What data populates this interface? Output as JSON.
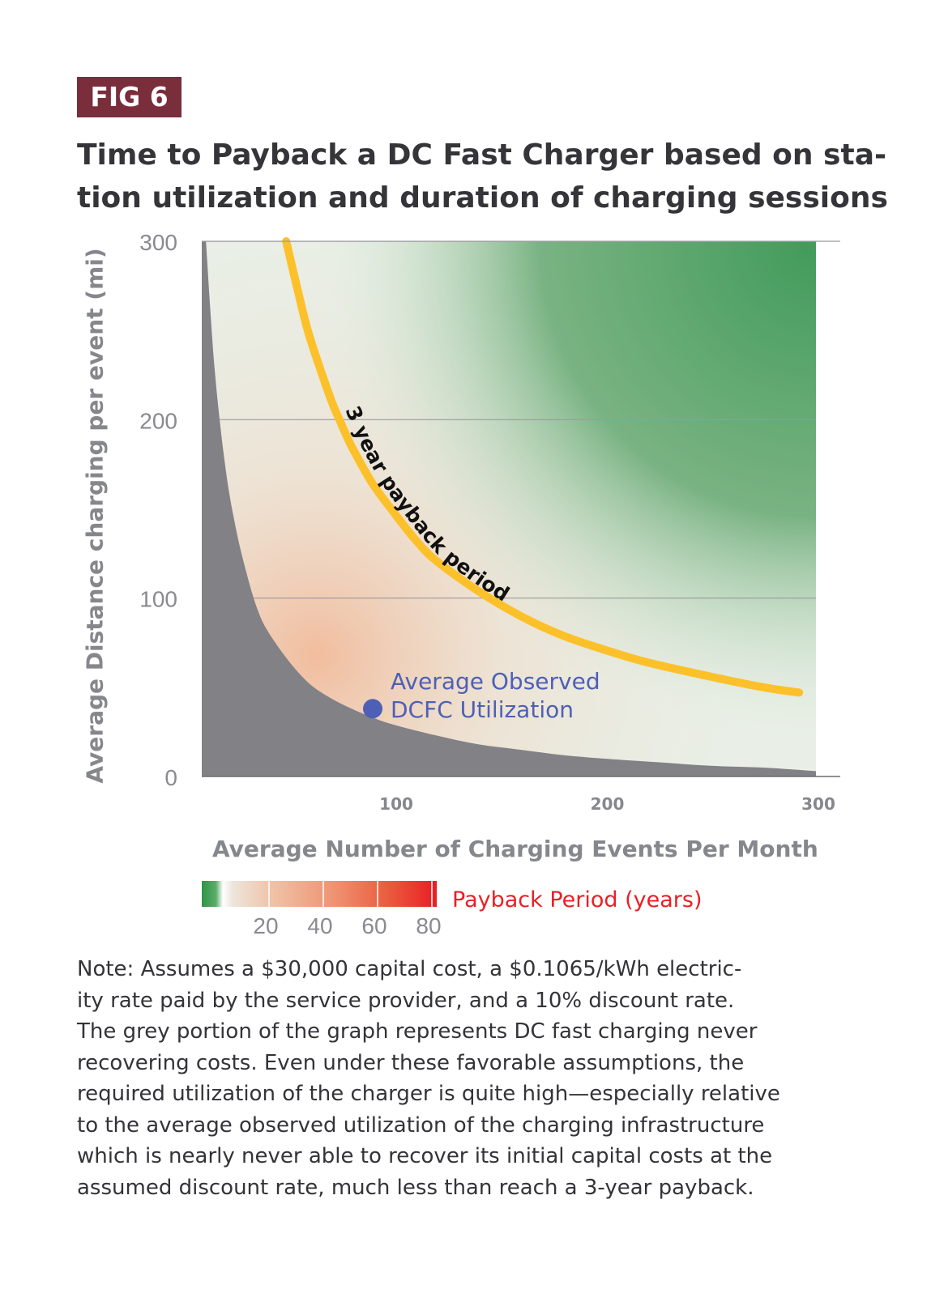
{
  "figure_label": "FIG 6",
  "title_lines": [
    "Time to Payback a DC Fast Charger based on sta-",
    "tion utilization and duration of charging sessions"
  ],
  "note_lines": [
    "Note: Assumes a $30,000 capital cost, a $0.1065/kWh electric-",
    "ity rate paid by the service provider, and a 10% discount rate.",
    "The grey portion of the graph represents DC fast charging never",
    "recovering costs. Even under these favorable assumptions, the",
    "required utilization of the charger is quite high—especially relative",
    "to the average observed utilization of the charging infrastructure",
    "which is nearly never able to recover its initial capital costs at the",
    "assumed discount rate, much less than reach a 3-year payback."
  ],
  "chart_data": {
    "type": "heatmap",
    "xlabel": "Average Number of Charging Events Per Month",
    "ylabel": "Average Distance charging per event (mi)",
    "xlim": [
      9,
      300
    ],
    "ylim": [
      0,
      300
    ],
    "x_ticks": [
      "100",
      "200",
      "300"
    ],
    "y_ticks": [
      "0",
      "100",
      "200",
      "300"
    ],
    "grid_y": true,
    "no_payback_boundary": {
      "name": "grey: never recovering costs",
      "color": "#818186",
      "x": [
        11,
        15,
        20,
        25,
        30,
        35,
        40,
        50,
        60,
        70,
        80,
        90,
        100,
        120,
        140,
        160,
        180,
        200,
        225,
        250,
        275,
        300
      ],
      "y": [
        300,
        230,
        175,
        140,
        115,
        95,
        82,
        65,
        52,
        44,
        38,
        33,
        29,
        23,
        18,
        15,
        12,
        10,
        8,
        6,
        5,
        3
      ]
    },
    "payback_curve": {
      "label": "3 year payback period",
      "color": "#fcc12a",
      "x": [
        49,
        55,
        60,
        70,
        75,
        80,
        90,
        100,
        110,
        120,
        140,
        160,
        180,
        200,
        220,
        250,
        275,
        292
      ],
      "y": [
        300,
        270,
        247,
        212,
        198,
        185,
        164,
        148,
        133,
        121,
        104,
        90,
        79,
        71,
        64,
        56,
        50,
        47
      ]
    },
    "observed_point": {
      "label_lines": [
        "Average Observed",
        "DCFC Utilization"
      ],
      "x": 90,
      "y": 38,
      "color": "#4d60b5"
    },
    "legend": {
      "title": "Payback Period (years)",
      "title_color": "#ea1f25",
      "ticks": [
        "20",
        "40",
        "60",
        "80"
      ],
      "range": [
        0,
        80
      ]
    }
  }
}
